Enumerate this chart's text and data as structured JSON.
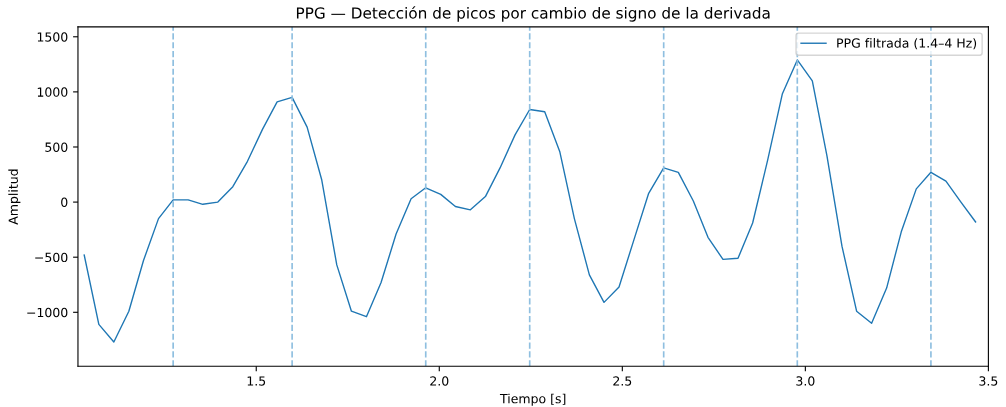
{
  "chart_data": {
    "type": "line",
    "title": "PPG — Detección de picos por cambio de signo de la derivada",
    "xlabel": "Tiempo [s]",
    "ylabel": "Amplitud",
    "x": [
      1.03,
      1.07,
      1.111,
      1.152,
      1.192,
      1.233,
      1.273,
      1.314,
      1.354,
      1.395,
      1.436,
      1.476,
      1.517,
      1.557,
      1.598,
      1.639,
      1.679,
      1.72,
      1.76,
      1.801,
      1.841,
      1.882,
      1.923,
      1.963,
      2.004,
      2.044,
      2.085,
      2.126,
      2.166,
      2.207,
      2.247,
      2.288,
      2.329,
      2.369,
      2.41,
      2.45,
      2.491,
      2.531,
      2.572,
      2.613,
      2.653,
      2.694,
      2.734,
      2.775,
      2.816,
      2.856,
      2.897,
      2.937,
      2.978,
      3.019,
      3.059,
      3.1,
      3.14,
      3.181,
      3.222,
      3.262,
      3.303,
      3.343,
      3.384,
      3.425,
      3.465
    ],
    "series": [
      {
        "name": "PPG filtrada (1.4–4 Hz)",
        "color": "#1f77b4",
        "values": [
          -480,
          -1110,
          -1270,
          -990,
          -530,
          -150,
          20,
          20,
          -20,
          0,
          140,
          370,
          660,
          910,
          950,
          680,
          200,
          -570,
          -990,
          -1040,
          -730,
          -290,
          30,
          130,
          70,
          -40,
          -70,
          50,
          310,
          610,
          840,
          820,
          460,
          -150,
          -660,
          -910,
          -770,
          -350,
          80,
          310,
          270,
          10,
          -320,
          -520,
          -510,
          -190,
          380,
          980,
          1290,
          1100,
          420,
          -400,
          -990,
          -1100,
          -780,
          -270,
          120,
          270,
          190,
          0,
          -180
        ]
      }
    ],
    "ref_lines": [
      {
        "axis": "x",
        "value": 1.273,
        "color": "#8fbfe0",
        "line_style": "dashed"
      },
      {
        "axis": "x",
        "value": 1.598,
        "color": "#8fbfe0",
        "line_style": "dashed"
      },
      {
        "axis": "x",
        "value": 1.963,
        "color": "#8fbfe0",
        "line_style": "dashed"
      },
      {
        "axis": "x",
        "value": 2.247,
        "color": "#8fbfe0",
        "line_style": "dashed"
      },
      {
        "axis": "x",
        "value": 2.613,
        "color": "#8fbfe0",
        "line_style": "dashed"
      },
      {
        "axis": "x",
        "value": 2.978,
        "color": "#8fbfe0",
        "line_style": "dashed"
      },
      {
        "axis": "x",
        "value": 3.343,
        "color": "#8fbfe0",
        "line_style": "dashed"
      }
    ],
    "xlim": [
      1.013,
      3.5
    ],
    "xticks": [
      1.5,
      {
        "value": 2,
        "label": "2.0"
      },
      2.5,
      {
        "value": 3,
        "label": "3.0"
      },
      3.5
    ],
    "ylim": [
      -1490,
      1590
    ],
    "yticks": [
      {
        "value": -1000,
        "label": "−1000"
      },
      {
        "value": -500,
        "label": "−500"
      },
      0,
      500,
      1000,
      1500
    ],
    "grid": false,
    "legend": "top right",
    "marker": "none",
    "line_style": "solid"
  }
}
